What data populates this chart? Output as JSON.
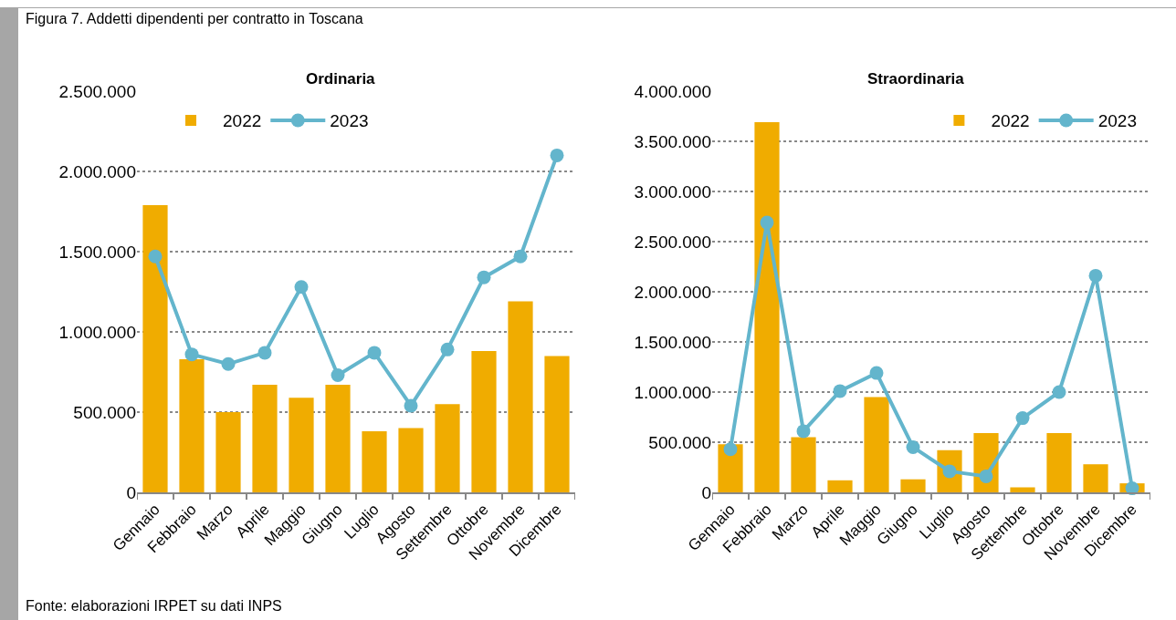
{
  "chart_data": [
    {
      "type": "bar",
      "title": "Ordinaria",
      "categories": [
        "Gennaio",
        "Febbraio",
        "Marzo",
        "Aprile",
        "Maggio",
        "Giugno",
        "Luglio",
        "Agosto",
        "Settembre",
        "Ottobre",
        "Novembre",
        "Dicembre"
      ],
      "series": [
        {
          "name": "2022",
          "color": "#f0ac00",
          "values": [
            1790000,
            830000,
            500000,
            670000,
            590000,
            670000,
            380000,
            400000,
            550000,
            880000,
            1190000,
            850000
          ]
        },
        {
          "name": "2023",
          "type": "line",
          "color": "#63b5cc",
          "values": [
            1470000,
            860000,
            800000,
            870000,
            1280000,
            730000,
            870000,
            540000,
            890000,
            1340000,
            1470000,
            2100000
          ]
        }
      ],
      "ylim": [
        0,
        2500000
      ],
      "yticks": [
        0,
        {
          "value": 500000,
          "label": "500.000"
        },
        {
          "value": 1000000,
          "label": "1.000.000"
        },
        {
          "value": 1500000,
          "label": "1.500.000"
        },
        {
          "value": 2000000,
          "label": "2.000.000"
        },
        {
          "value": 2500000,
          "label": "2.500.000"
        }
      ],
      "grid": "y",
      "legend": "top left",
      "marker": "circle",
      "line_style": "solid",
      "annotations": [
        "Figura 7. Addetti dipendenti per contratto in Toscana",
        "Fonte: elaborazioni IRPET su dati INPS"
      ]
    },
    {
      "type": "bar",
      "title": "Straordinaria",
      "categories": [
        "Gennaio",
        "Febbraio",
        "Marzo",
        "Aprile",
        "Maggio",
        "Giugno",
        "Luglio",
        "Agosto",
        "Settembre",
        "Ottobre",
        "Novembre",
        "Dicembre"
      ],
      "series": [
        {
          "name": "2022",
          "color": "#f0ac00",
          "values": [
            480000,
            3690000,
            550000,
            120000,
            950000,
            130000,
            420000,
            590000,
            50000,
            590000,
            280000,
            90000
          ]
        },
        {
          "name": "2023",
          "type": "line",
          "color": "#63b5cc",
          "values": [
            430000,
            2690000,
            610000,
            1010000,
            1190000,
            450000,
            210000,
            160000,
            740000,
            1000000,
            2160000,
            40000
          ]
        }
      ],
      "ylim": [
        0,
        4000000
      ],
      "yticks": [
        0,
        {
          "value": 500000,
          "label": "500.000"
        },
        {
          "value": 1000000,
          "label": "1.000.000"
        },
        {
          "value": 1500000,
          "label": "1.500.000"
        },
        {
          "value": 2000000,
          "label": "2.000.000"
        },
        {
          "value": 2500000,
          "label": "2.500.000"
        },
        {
          "value": 3000000,
          "label": "3.000.000"
        },
        {
          "value": 3500000,
          "label": "3.500.000"
        },
        {
          "value": 4000000,
          "label": "4.000.000"
        }
      ],
      "grid": "y",
      "legend": "top right",
      "marker": "circle",
      "line_style": "solid"
    }
  ]
}
